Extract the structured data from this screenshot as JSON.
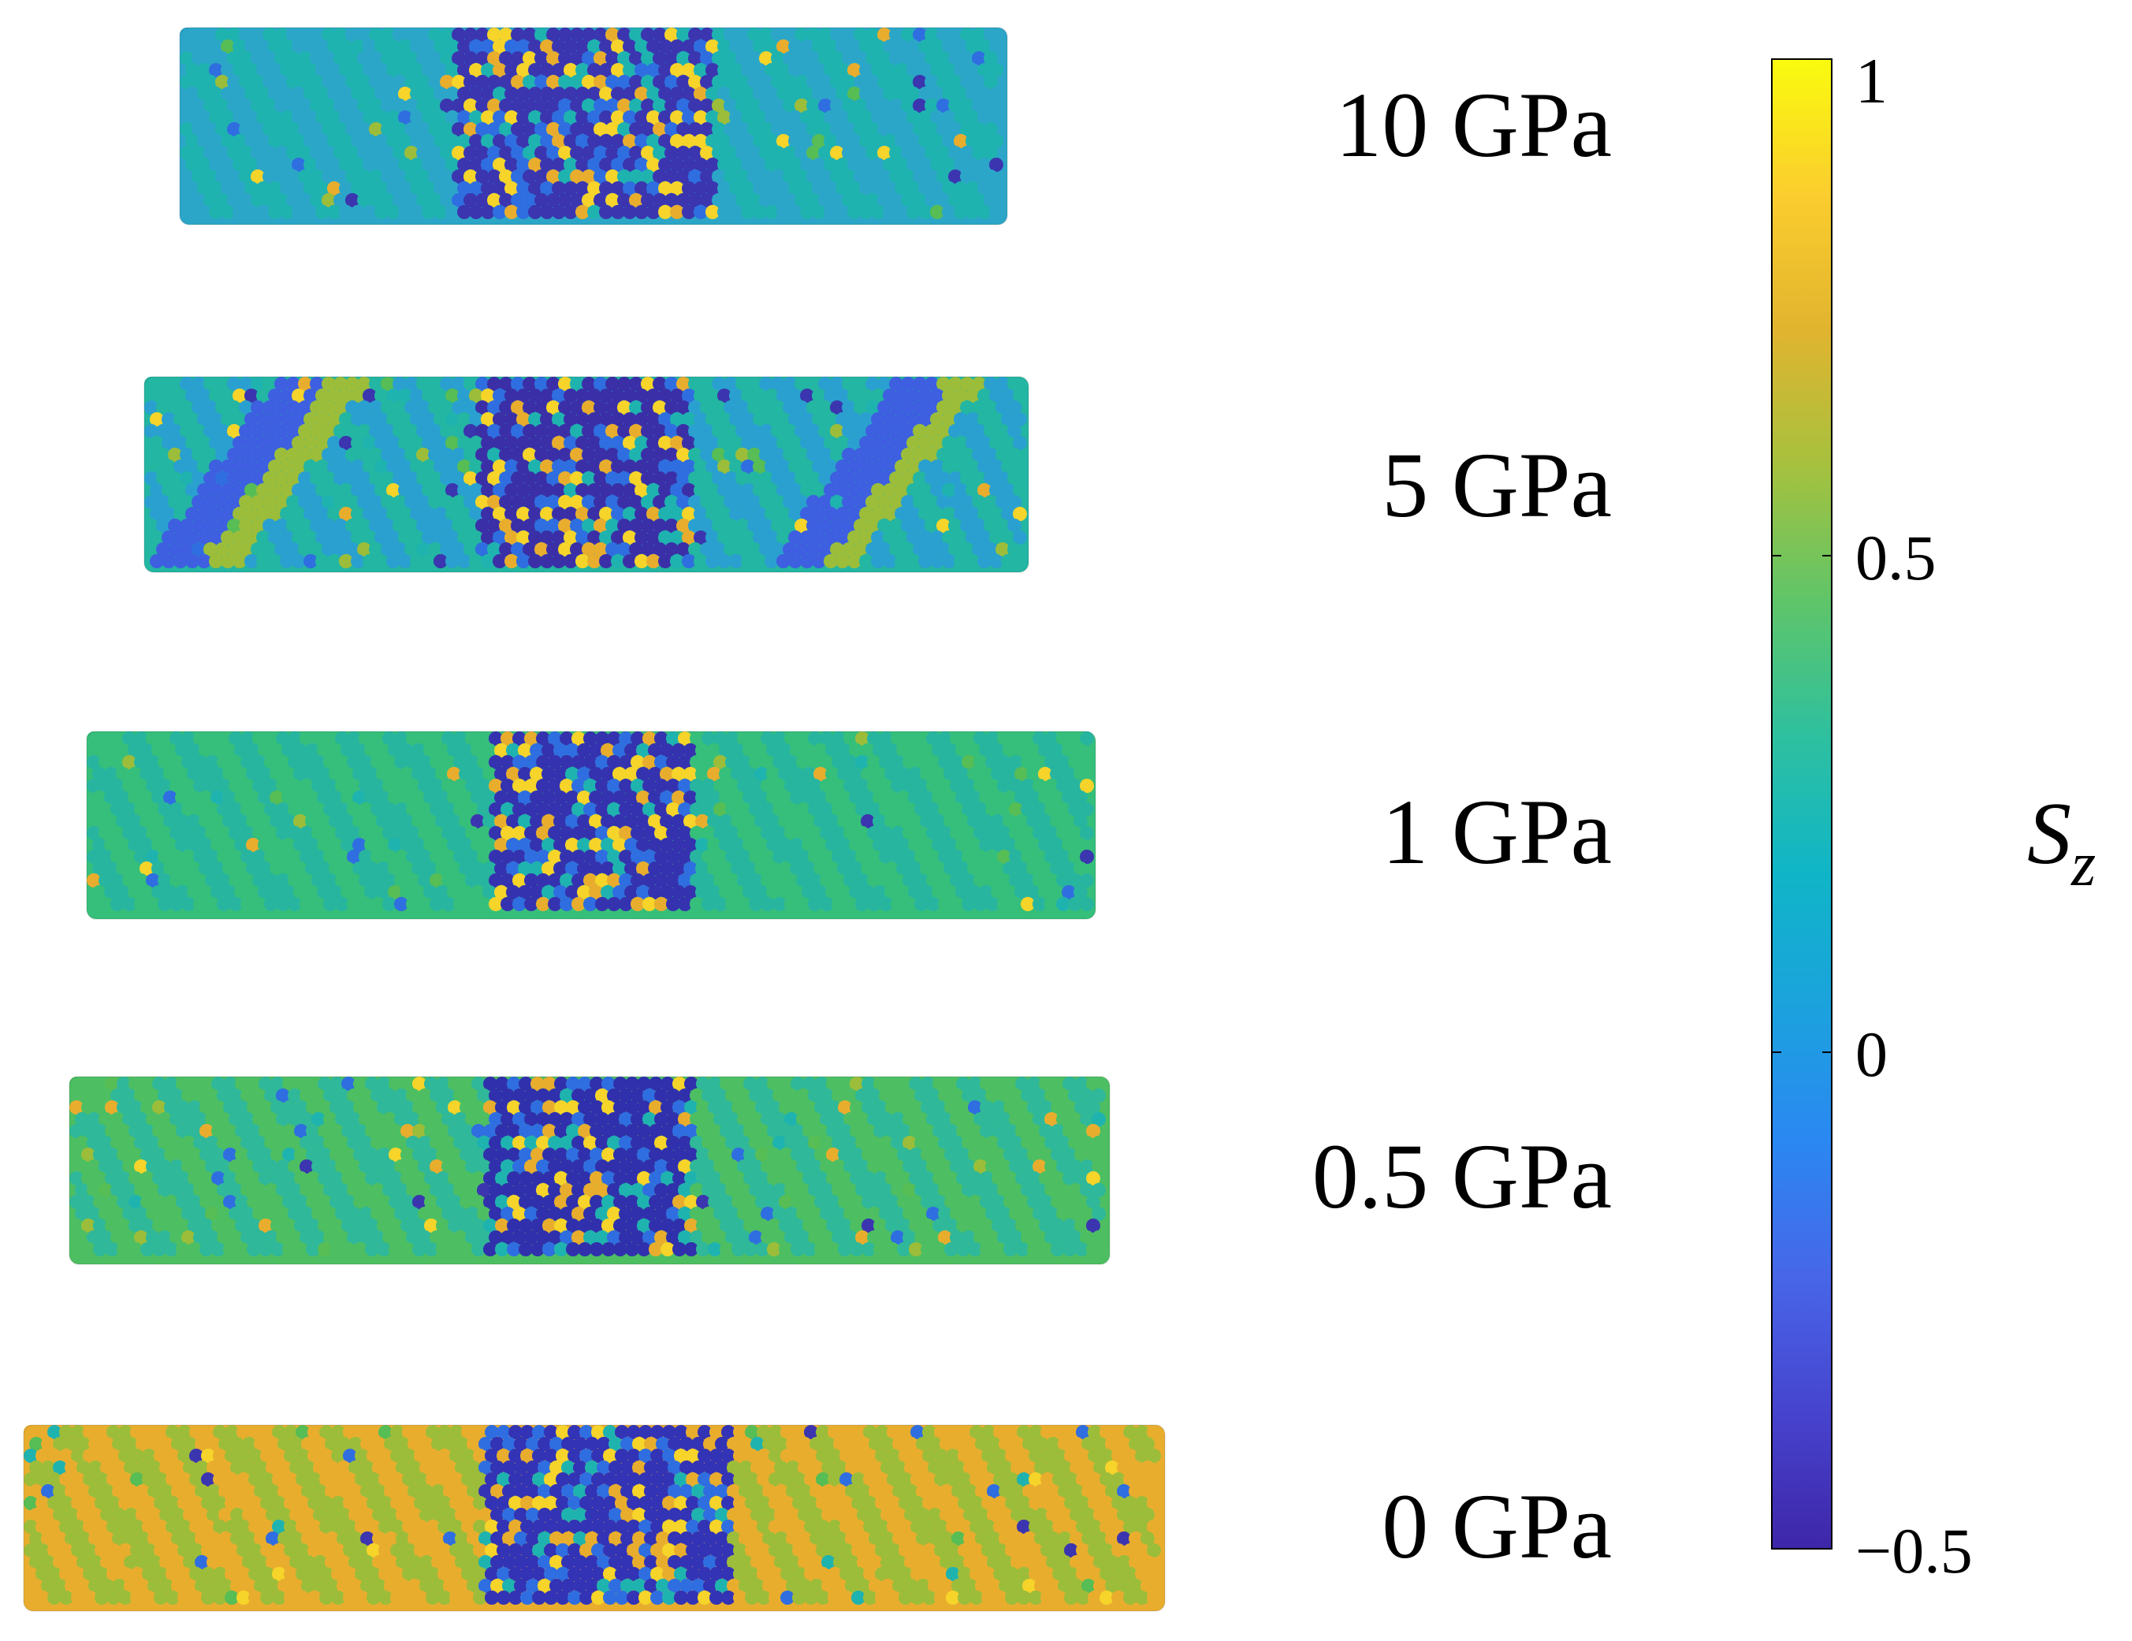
{
  "panels": [
    {
      "label": "10 GPa",
      "matrix_color": "#2ca6c8",
      "matrix_color_alt": "#1fb3b0",
      "core_color": "#3b35b0",
      "stripe_color": "#2f6ee0",
      "stripes": false
    },
    {
      "label": "5 GPa",
      "matrix_color": "#23b6a2",
      "matrix_color_alt": "#2aa0d0",
      "core_color": "#3b2fa8",
      "stripe_color": "#3d5fe0",
      "stripes": true
    },
    {
      "label": "1 GPa",
      "matrix_color": "#36bf7a",
      "matrix_color_alt": "#27b5a0",
      "core_color": "#3532b0",
      "stripe_color": "#2aa8c8",
      "stripes": false
    },
    {
      "label": "0.5 GPa",
      "matrix_color": "#4dbf62",
      "matrix_color_alt": "#2fb89a",
      "core_color": "#3030ad",
      "stripe_color": "#2aa8c8",
      "stripes": false
    },
    {
      "label": "0 GPa",
      "matrix_color": "#e9ad2e",
      "matrix_color_alt": "#9cbd3a",
      "core_color": "#3333b5",
      "stripe_color": "#57bd55",
      "stripes": false
    }
  ],
  "colorbar": {
    "title": "S",
    "title_subscript": "z",
    "min": -0.5,
    "max": 1,
    "ticks": [
      {
        "value": 1,
        "label": "1"
      },
      {
        "value": 0.5,
        "label": "0.5"
      },
      {
        "value": 0,
        "label": "0"
      },
      {
        "value": -0.5,
        "label": "−0.5"
      }
    ],
    "colormap": [
      "#3e26a8",
      "#4743ce",
      "#4766e8",
      "#2b87f2",
      "#1ba2dd",
      "#10b5c7",
      "#2ec09f",
      "#5fc569",
      "#a6c13e",
      "#e1b42f",
      "#fbcd2e",
      "#f9fb0e"
    ]
  }
}
